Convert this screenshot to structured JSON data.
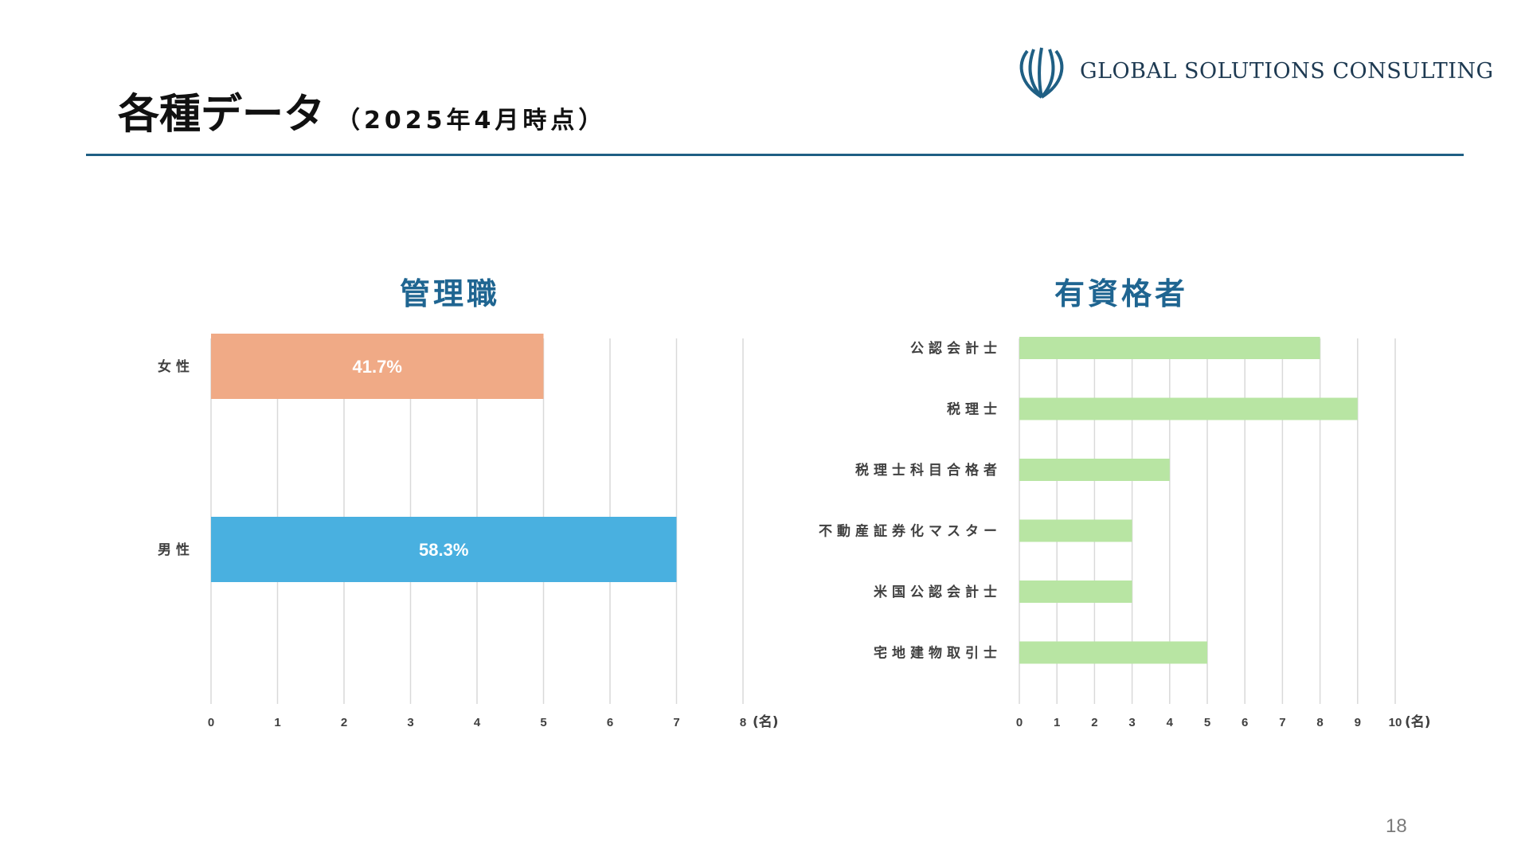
{
  "header": {
    "title": "各種データ",
    "subtitle": "（2025年4月時点）",
    "rule_color": "#1f5f84"
  },
  "logo": {
    "text": "GLOBAL SOLUTIONS CONSULTING",
    "color": "#1e3a52",
    "mark_color": "#1f5f84",
    "icon": "crown-logo-icon"
  },
  "page_number": "18",
  "chart_data": [
    {
      "type": "bar",
      "orientation": "horizontal",
      "title": "管理職",
      "categories": [
        "女性",
        "男性"
      ],
      "values": [
        5,
        7
      ],
      "data_labels": [
        "41.7%",
        "58.3%"
      ],
      "colors": [
        "#f0aa86",
        "#49b0e0"
      ],
      "xlim": [
        0,
        8
      ],
      "x_ticks": [
        "0",
        "1",
        "2",
        "3",
        "4",
        "5",
        "6",
        "7",
        "8"
      ],
      "x_unit": "(名)",
      "grid": true,
      "legend": "none"
    },
    {
      "type": "bar",
      "orientation": "horizontal",
      "title": "有資格者",
      "categories": [
        "公認会計士",
        "税理士",
        "税理士科目合格者",
        "不動産証券化マスター",
        "米国公認会計士",
        "宅地建物取引士"
      ],
      "values": [
        8,
        9,
        4,
        3,
        3,
        5
      ],
      "colors": [
        "#b8e5a3"
      ],
      "xlim": [
        0,
        10
      ],
      "x_ticks": [
        "0",
        "1",
        "2",
        "3",
        "4",
        "5",
        "6",
        "7",
        "8",
        "9",
        "10"
      ],
      "x_unit": "(名)",
      "grid": true,
      "legend": "none"
    }
  ]
}
